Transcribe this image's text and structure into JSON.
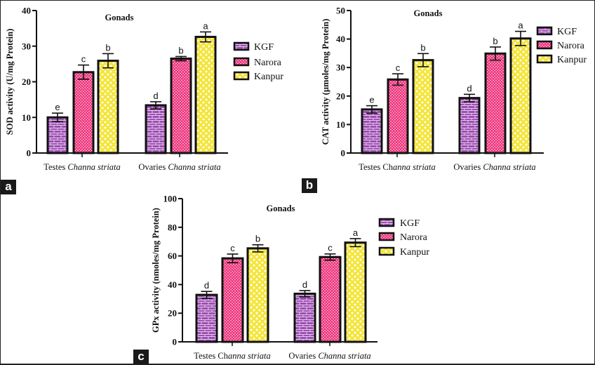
{
  "panel_labels": [
    "a",
    "b",
    "c"
  ],
  "colors": {
    "KGF": "#9b4fb0",
    "Narora": "#f0387f",
    "Kanpur": "#f4e53a",
    "border": "#111111"
  },
  "chart_data": [
    {
      "type": "bar",
      "panel": "a",
      "title": "Gonads",
      "ylabel": "SOD activity (U/mg Protein)",
      "xlabel": "",
      "ylim": [
        0,
        40
      ],
      "yticks": [
        0,
        10,
        20,
        30,
        40
      ],
      "categories": [
        {
          "prefix": "Testes ",
          "italic": "Channa striata"
        },
        {
          "prefix": "Ovaries ",
          "italic": "Channa striata"
        }
      ],
      "legend": [
        "KGF",
        "Narora",
        "Kanpur"
      ],
      "legend_position": "right",
      "series": [
        {
          "name": "KGF",
          "values": [
            10.0,
            13.4
          ],
          "errors": [
            1.2,
            1.0
          ],
          "letters": [
            "e",
            "d"
          ]
        },
        {
          "name": "Narora",
          "values": [
            22.7,
            26.5
          ],
          "errors": [
            2.0,
            0.6
          ],
          "letters": [
            "c",
            "b"
          ]
        },
        {
          "name": "Kanpur",
          "values": [
            25.9,
            32.6
          ],
          "errors": [
            2.0,
            1.4
          ],
          "letters": [
            "b",
            "a"
          ]
        }
      ]
    },
    {
      "type": "bar",
      "panel": "b",
      "title": "Gonads",
      "ylabel": "CAT activity (µmoles/mg Protein)",
      "xlabel": "",
      "ylim": [
        0,
        50
      ],
      "yticks": [
        0,
        10,
        20,
        30,
        40,
        50
      ],
      "categories": [
        {
          "prefix": "Testes Ch",
          "italic": "anna striata"
        },
        {
          "prefix": "Ovaries ",
          "italic": "Channa striata"
        }
      ],
      "legend": [
        "KGF",
        "Narora",
        "Kanpur"
      ],
      "legend_position": "top-right",
      "series": [
        {
          "name": "KGF",
          "values": [
            15.3,
            19.3
          ],
          "errors": [
            1.3,
            1.3
          ],
          "letters": [
            "e",
            "d"
          ]
        },
        {
          "name": "Narora",
          "values": [
            25.8,
            34.9
          ],
          "errors": [
            2.0,
            2.3
          ],
          "letters": [
            "c",
            "b"
          ]
        },
        {
          "name": "Kanpur",
          "values": [
            32.6,
            40.2
          ],
          "errors": [
            2.3,
            2.5
          ],
          "letters": [
            "b",
            "a"
          ]
        }
      ]
    },
    {
      "type": "bar",
      "panel": "c",
      "title": "Gonads",
      "ylabel": "GPx activity (nmoles/mg Protein)",
      "xlabel": "",
      "ylim": [
        0,
        100
      ],
      "yticks": [
        0,
        20,
        40,
        60,
        80,
        100
      ],
      "categories": [
        {
          "prefix": "Testes Ch",
          "italic": "anna striata"
        },
        {
          "prefix": "Ovaries ",
          "italic": "Channa striata"
        }
      ],
      "legend": [
        "KGF",
        "Narora",
        "Kanpur"
      ],
      "legend_position": "right",
      "series": [
        {
          "name": "KGF",
          "values": [
            32.8,
            33.6
          ],
          "errors": [
            2.4,
            2.2
          ],
          "letters": [
            "d",
            "d"
          ]
        },
        {
          "name": "Narora",
          "values": [
            58.3,
            59.2
          ],
          "errors": [
            3.0,
            2.2
          ],
          "letters": [
            "c",
            "c"
          ]
        },
        {
          "name": "Kanpur",
          "values": [
            65.3,
            69.3
          ],
          "errors": [
            2.5,
            2.8
          ],
          "letters": [
            "b",
            "a"
          ]
        }
      ]
    }
  ]
}
